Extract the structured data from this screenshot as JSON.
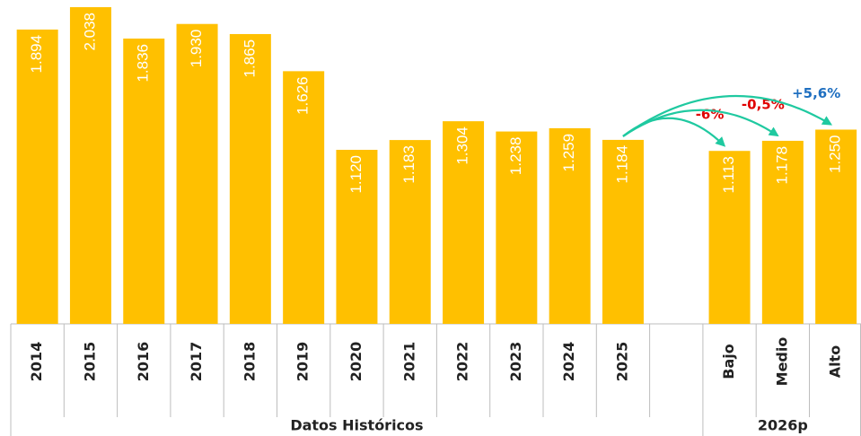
{
  "chart_data": {
    "type": "bar",
    "color": "#FFC000",
    "arrow_color": "#1FC9A0",
    "groups": [
      {
        "name": "Datos Históricos",
        "categories": [
          "2014",
          "2015",
          "2016",
          "2017",
          "2018",
          "2019",
          "2020",
          "2021",
          "2022",
          "2023",
          "2024",
          "2025"
        ],
        "values": [
          1894,
          2038,
          1836,
          1930,
          1865,
          1626,
          1120,
          1183,
          1304,
          1238,
          1259,
          1184
        ],
        "value_labels": [
          "1.894",
          "2.038",
          "1.836",
          "1.930",
          "1.865",
          "1.626",
          "1.120",
          "1.183",
          "1.304",
          "1.238",
          "1.259",
          "1.184"
        ]
      },
      {
        "name": "2026p",
        "categories": [
          "Bajo",
          "Medio",
          "Alto"
        ],
        "values": [
          1113,
          1178,
          1250
        ],
        "value_labels": [
          "1.113",
          "1.178",
          "1.250"
        ],
        "annotations": [
          {
            "text": "-6%",
            "color": "#E00000"
          },
          {
            "text": "-0,5%",
            "color": "#E00000"
          },
          {
            "text": "+5,6%",
            "color": "#1F6FC0"
          }
        ]
      }
    ]
  }
}
